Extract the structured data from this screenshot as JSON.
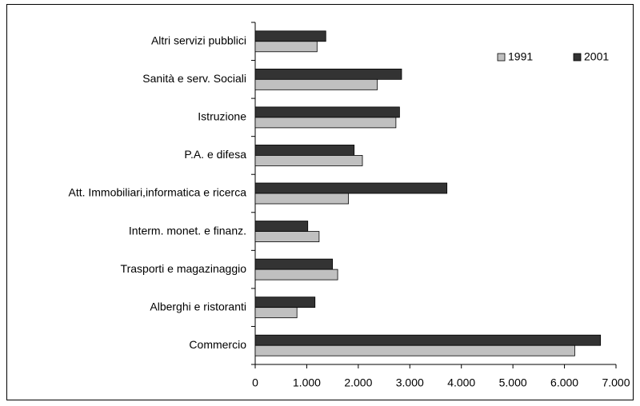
{
  "chart_data": {
    "type": "barh",
    "categories": [
      "Altri servizi pubblici",
      "Sanità e serv. Sociali",
      "Istruzione",
      "P.A. e difesa",
      "Att. Immobiliari,informatica e ricerca",
      "Interm. monet. e finanz.",
      "Trasporti e magazinaggio",
      "Alberghi e ristoranti",
      "Commercio"
    ],
    "series": [
      {
        "name": "1991",
        "color": "#c0c0c0",
        "values": [
          1200,
          2370,
          2730,
          2080,
          1810,
          1240,
          1600,
          810,
          6200
        ]
      },
      {
        "name": "2001",
        "color": "#333333",
        "values": [
          1370,
          2840,
          2800,
          1920,
          3720,
          1020,
          1500,
          1160,
          6700
        ]
      }
    ],
    "xlim": [
      0,
      7000
    ],
    "xticks": [
      0,
      {
        "value": 1000,
        "label": "1.000"
      },
      {
        "value": 2000,
        "label": "2.000"
      },
      {
        "value": 3000,
        "label": "3.000"
      },
      {
        "value": 4000,
        "label": "4.000"
      },
      {
        "value": 5000,
        "label": "5.000"
      },
      {
        "value": 6000,
        "label": "6.000"
      },
      {
        "value": 7000,
        "label": "7.000"
      }
    ],
    "legend": "upper right",
    "grid": false
  }
}
